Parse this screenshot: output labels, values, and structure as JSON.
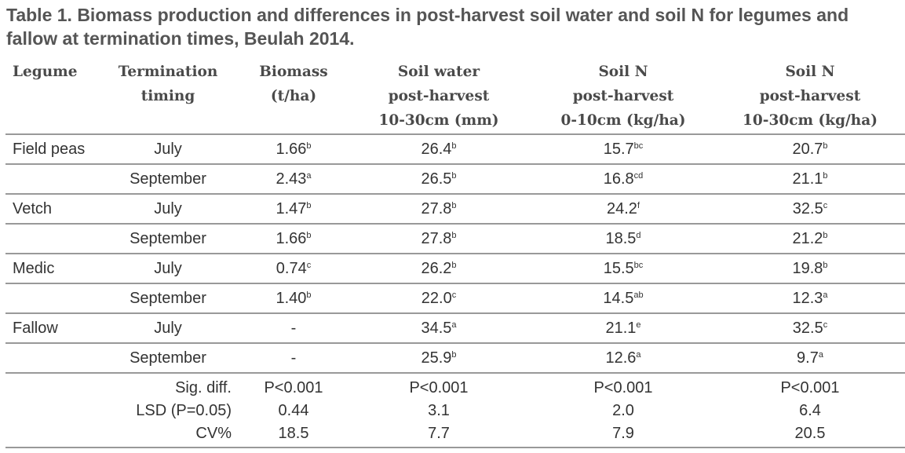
{
  "title": "Table 1. Biomass production and differences in post-harvest soil water and soil N for legumes and fallow at termination times, Beulah 2014.",
  "headers": [
    {
      "l1": "Legume",
      "l2": "",
      "l3": ""
    },
    {
      "l1": "Termination",
      "l2": "timing",
      "l3": ""
    },
    {
      "l1": "Biomass",
      "l2": "(t/ha)",
      "l3": ""
    },
    {
      "l1": "Soil water",
      "l2": "post-harvest",
      "l3": "10-30cm (mm)"
    },
    {
      "l1": "Soil N",
      "l2": "post-harvest",
      "l3": "0-10cm (kg/ha)"
    },
    {
      "l1": "Soil N",
      "l2": "post-harvest",
      "l3": "10-30cm (kg/ha)"
    }
  ],
  "rows": [
    {
      "legume": "Field peas",
      "timing": "July",
      "biomass": "1.66",
      "biomass_sup": "b",
      "water": "26.4",
      "water_sup": "b",
      "n010": "15.7",
      "n010_sup": "bc",
      "n1030": "20.7",
      "n1030_sup": "b"
    },
    {
      "legume": "",
      "timing": "September",
      "biomass": "2.43",
      "biomass_sup": "a",
      "water": "26.5",
      "water_sup": "b",
      "n010": "16.8",
      "n010_sup": "cd",
      "n1030": "21.1",
      "n1030_sup": "b"
    },
    {
      "legume": "Vetch",
      "timing": "July",
      "biomass": "1.47",
      "biomass_sup": "b",
      "water": "27.8",
      "water_sup": "b",
      "n010": "24.2",
      "n010_sup": "f",
      "n1030": "32.5",
      "n1030_sup": "c"
    },
    {
      "legume": "",
      "timing": "September",
      "biomass": "1.66",
      "biomass_sup": "b",
      "water": "27.8",
      "water_sup": "b",
      "n010": "18.5",
      "n010_sup": "d",
      "n1030": "21.2",
      "n1030_sup": "b"
    },
    {
      "legume": "Medic",
      "timing": "July",
      "biomass": "0.74",
      "biomass_sup": "c",
      "water": "26.2",
      "water_sup": "b",
      "n010": "15.5",
      "n010_sup": "bc",
      "n1030": "19.8",
      "n1030_sup": "b"
    },
    {
      "legume": "",
      "timing": "September",
      "biomass": "1.40",
      "biomass_sup": "b",
      "water": "22.0",
      "water_sup": "c",
      "n010": "14.5",
      "n010_sup": "ab",
      "n1030": "12.3",
      "n1030_sup": "a"
    },
    {
      "legume": "Fallow",
      "timing": "July",
      "biomass": "-",
      "biomass_sup": "",
      "water": "34.5",
      "water_sup": "a",
      "n010": "21.1",
      "n010_sup": "e",
      "n1030": "32.5",
      "n1030_sup": "c"
    },
    {
      "legume": "",
      "timing": "September",
      "biomass": "-",
      "biomass_sup": "",
      "water": "25.9",
      "water_sup": "b",
      "n010": "12.6",
      "n010_sup": "a",
      "n1030": "9.7",
      "n1030_sup": "a"
    }
  ],
  "stats": [
    {
      "label": "Sig. diff.",
      "biomass": "P<0.001",
      "water": "P<0.001",
      "n010": "P<0.001",
      "n1030": "P<0.001"
    },
    {
      "label": "LSD (P=0.05)",
      "biomass": "0.44",
      "water": "3.1",
      "n010": "2.0",
      "n1030": "6.4"
    },
    {
      "label": "CV%",
      "biomass": "18.5",
      "water": "7.7",
      "n010": "7.9",
      "n1030": "20.5"
    }
  ]
}
